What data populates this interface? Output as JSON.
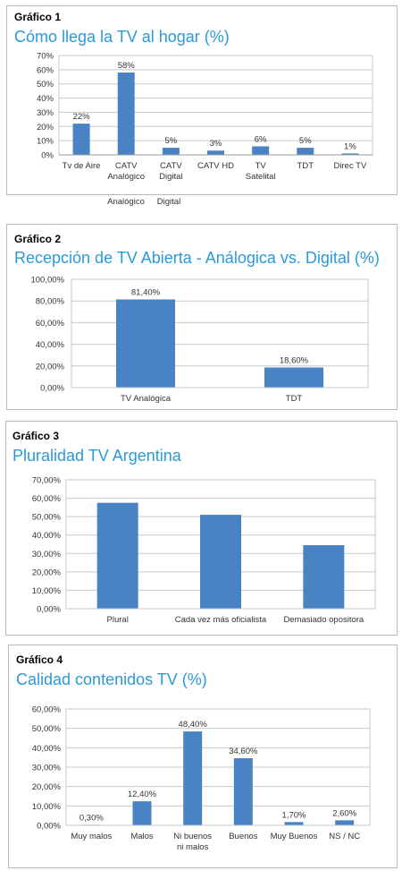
{
  "colors": {
    "bar": "#4a83c3",
    "title": "#2a9ad8",
    "grid": "#c8c8c8",
    "text": "#333333"
  },
  "figures": [
    {
      "kicker": "Gráfico 1",
      "title": "Cómo llega la TV al hogar (%)"
    },
    {
      "kicker": "Gráfico 2",
      "title": "Recepción de TV Abierta - Análogica vs. Digital (%)"
    },
    {
      "kicker": "Gráfico 3",
      "title": "Pluralidad TV Argentina"
    },
    {
      "kicker": "Gráfico 4",
      "title": "Calidad contenidos TV (%)"
    }
  ],
  "chart_data": [
    {
      "type": "bar",
      "categories": [
        "Tv de Aire",
        "CATV Analógico",
        "CATV Digital",
        "CATV HD",
        "TV Satelital",
        "TDT",
        "Direc TV"
      ],
      "values": [
        22,
        58,
        5,
        3,
        6,
        5,
        1
      ],
      "value_labels": [
        "22%",
        "58%",
        "5%",
        "3%",
        "6%",
        "5%",
        "1%"
      ],
      "yticks": [
        "0%",
        "10%",
        "20%",
        "30%",
        "40%",
        "50%",
        "60%",
        "70%"
      ],
      "ylim": [
        0,
        70
      ],
      "grid": true,
      "overflow_labels": [
        "Analógico",
        "Digital"
      ]
    },
    {
      "type": "bar",
      "categories": [
        "TV Analógica",
        "TDT"
      ],
      "values": [
        81.4,
        18.6
      ],
      "value_labels": [
        "81,40%",
        "18,60%"
      ],
      "yticks": [
        "0,00%",
        "20,00%",
        "40,00%",
        "60,00%",
        "80,00%",
        "100,00%"
      ],
      "ylim": [
        0,
        100
      ],
      "grid": true
    },
    {
      "type": "bar",
      "categories": [
        "Plural",
        "Cada vez más oficialista",
        "Demasiado opositora"
      ],
      "values": [
        57.5,
        51,
        34.5
      ],
      "value_labels": [],
      "yticks": [
        "0,00%",
        "10,00%",
        "20,00%",
        "30,00%",
        "40,00%",
        "50,00%",
        "60,00%",
        "70,00%"
      ],
      "ylim": [
        0,
        70
      ],
      "grid": true
    },
    {
      "type": "bar",
      "categories": [
        "Muy malos",
        "Malos",
        "Ni buenos ni malos",
        "Buenos",
        "Muy Buenos",
        "NS / NC"
      ],
      "values": [
        0.3,
        12.4,
        48.4,
        34.6,
        1.7,
        2.6
      ],
      "value_labels": [
        "0,30%",
        "12,40%",
        "48,40%",
        "34,60%",
        "1,70%",
        "2,60%"
      ],
      "yticks": [
        "0,00%",
        "10,00%",
        "20,00%",
        "30,00%",
        "40,00%",
        "50,00%",
        "60,00%"
      ],
      "ylim": [
        0,
        60
      ],
      "grid": true
    }
  ]
}
